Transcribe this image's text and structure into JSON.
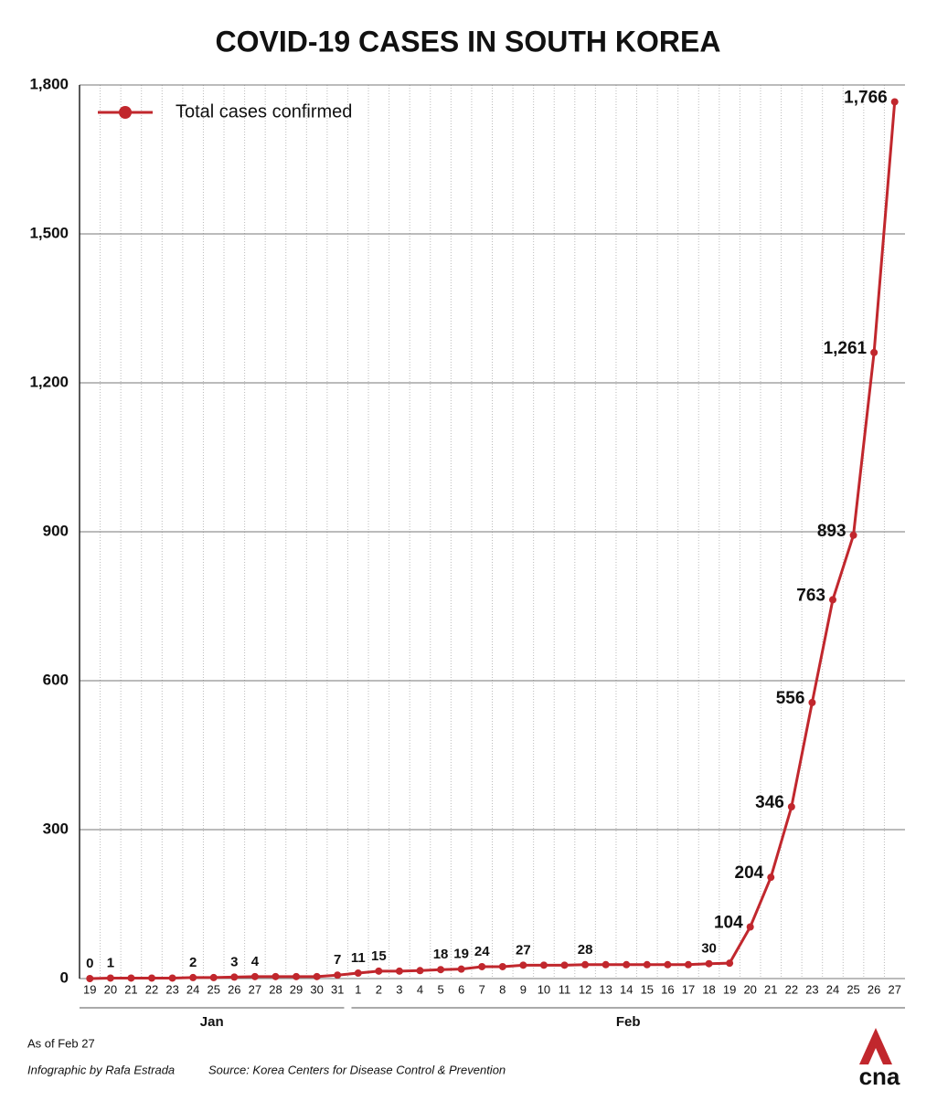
{
  "chart_data": {
    "type": "line",
    "title": "COVID-19 CASES IN SOUTH KOREA",
    "categories": [
      "19",
      "20",
      "21",
      "22",
      "23",
      "24",
      "25",
      "26",
      "27",
      "28",
      "29",
      "30",
      "31",
      "1",
      "2",
      "3",
      "4",
      "5",
      "6",
      "7",
      "8",
      "9",
      "10",
      "11",
      "12",
      "13",
      "14",
      "15",
      "16",
      "17",
      "18",
      "19",
      "20",
      "21",
      "22",
      "23",
      "24",
      "25",
      "26",
      "27"
    ],
    "months": [
      "Jan",
      "Feb"
    ],
    "series": [
      {
        "name": "Total cases confirmed",
        "color": "#c1272d",
        "values": [
          0,
          1,
          1,
          1,
          1,
          2,
          2,
          3,
          4,
          4,
          4,
          4,
          7,
          11,
          15,
          15,
          16,
          18,
          19,
          24,
          24,
          27,
          27,
          27,
          28,
          28,
          28,
          28,
          28,
          28,
          30,
          31,
          104,
          204,
          346,
          556,
          763,
          893,
          1261,
          1766
        ],
        "value_labels": [
          "0",
          "1",
          null,
          null,
          null,
          "2",
          null,
          "3",
          "4",
          null,
          null,
          null,
          "7",
          "11",
          "15",
          null,
          null,
          "18",
          "19",
          "24",
          null,
          "27",
          null,
          null,
          "28",
          null,
          null,
          null,
          null,
          null,
          "30",
          null,
          "104",
          "204",
          "346",
          "556",
          "763",
          "893",
          "1,261",
          "1,766"
        ]
      }
    ],
    "ylim": [
      0,
      1800
    ],
    "yticks": [
      0,
      300,
      600,
      900,
      {
        "value": 1200,
        "label": "1,200"
      },
      {
        "value": 1500,
        "label": "1,500"
      },
      {
        "value": 1800,
        "label": "1,800"
      }
    ],
    "grid": true,
    "legend": "top-left",
    "notes": {
      "as_of": "As of Feb 27",
      "credit": "Infographic by Rafa Estrada",
      "source": "Source: Korea Centers for Disease Control & Prevention"
    },
    "logo": "cna"
  }
}
